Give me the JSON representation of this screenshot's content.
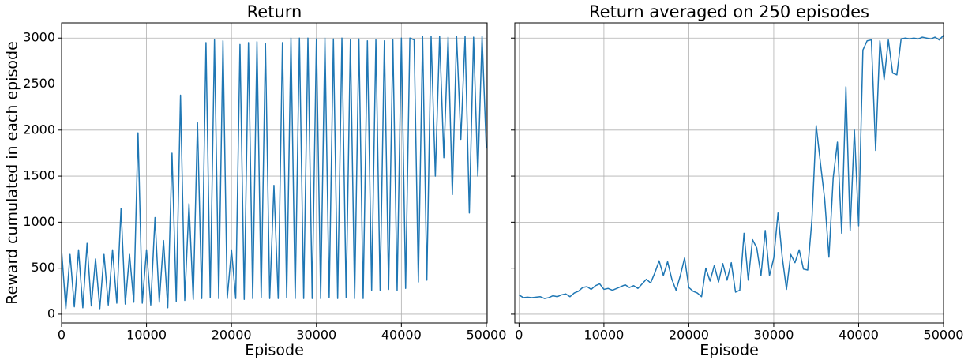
{
  "chart_data": [
    {
      "type": "line",
      "title": "Return",
      "x_label": "Episode",
      "y_label": "Reward cumulated in each episode",
      "x": [
        0,
        500,
        1000,
        1500,
        2000,
        2500,
        3000,
        3500,
        4000,
        4500,
        5000,
        5500,
        6000,
        6500,
        7000,
        7500,
        8000,
        8500,
        9000,
        9500,
        10000,
        10500,
        11000,
        11500,
        12000,
        12500,
        13000,
        13500,
        14000,
        14500,
        15000,
        15500,
        16000,
        16500,
        17000,
        17500,
        18000,
        18500,
        19000,
        19500,
        20000,
        20500,
        21000,
        21500,
        22000,
        22500,
        23000,
        23500,
        24000,
        24500,
        25000,
        25500,
        26000,
        26500,
        27000,
        27500,
        28000,
        28500,
        29000,
        29500,
        30000,
        30500,
        31000,
        31500,
        32000,
        32500,
        33000,
        33500,
        34000,
        34500,
        35000,
        35500,
        36000,
        36500,
        37000,
        37500,
        38000,
        38500,
        39000,
        39500,
        40000,
        40500,
        41000,
        41500,
        42000,
        42500,
        43000,
        43500,
        44000,
        44500,
        45000,
        45500,
        46000,
        46500,
        47000,
        47500,
        48000,
        48500,
        49000,
        49500,
        50000
      ],
      "series": [
        {
          "color": "#1f77b4",
          "values": [
            700,
            60,
            650,
            80,
            700,
            70,
            770,
            90,
            600,
            60,
            650,
            100,
            700,
            120,
            1150,
            110,
            650,
            130,
            1970,
            120,
            700,
            100,
            1050,
            130,
            800,
            70,
            1750,
            140,
            2380,
            150,
            1200,
            160,
            2080,
            170,
            2950,
            180,
            2980,
            170,
            2970,
            170,
            700,
            170,
            2930,
            160,
            2950,
            170,
            2960,
            180,
            2940,
            170,
            1400,
            170,
            2950,
            180,
            3000,
            170,
            3000,
            170,
            3000,
            170,
            2990,
            170,
            3000,
            180,
            2990,
            170,
            3000,
            180,
            2980,
            170,
            2990,
            170,
            2970,
            260,
            2980,
            260,
            2970,
            270,
            2980,
            260,
            3000,
            280,
            3000,
            2980,
            350,
            3020,
            370,
            3020,
            1500,
            3020,
            1700,
            3010,
            1300,
            3020,
            1900,
            3020,
            1100,
            3010,
            1500,
            3020,
            1800
          ]
        }
      ],
      "xlim": [
        0,
        50100
      ],
      "ylim": [
        -95,
        3165
      ],
      "xticks": [
        0,
        10000,
        20000,
        30000,
        40000,
        50000
      ],
      "yticks": [
        0,
        500,
        1000,
        1500,
        2000,
        2500,
        3000
      ],
      "grid": true,
      "y_tick_labels": true
    },
    {
      "type": "line",
      "title": "Return averaged on 250 episodes",
      "x_label": "Episode",
      "x": [
        0,
        500,
        1000,
        1500,
        2000,
        2500,
        3000,
        3500,
        4000,
        4500,
        5000,
        5500,
        6000,
        6500,
        7000,
        7500,
        8000,
        8500,
        9000,
        9500,
        10000,
        10500,
        11000,
        11500,
        12000,
        12500,
        13000,
        13500,
        14000,
        14500,
        15000,
        15500,
        16000,
        16500,
        17000,
        17500,
        18000,
        18500,
        19000,
        19500,
        20000,
        20500,
        21000,
        21500,
        22000,
        22500,
        23000,
        23500,
        24000,
        24500,
        25000,
        25500,
        26000,
        26500,
        27000,
        27500,
        28000,
        28500,
        29000,
        29500,
        30000,
        30500,
        31000,
        31500,
        32000,
        32500,
        33000,
        33500,
        34000,
        34500,
        35000,
        35500,
        36000,
        36500,
        37000,
        37500,
        38000,
        38500,
        39000,
        39500,
        40000,
        40500,
        41000,
        41500,
        42000,
        42500,
        43000,
        43500,
        44000,
        44500,
        45000,
        45500,
        46000,
        46500,
        47000,
        47500,
        48000,
        48500,
        49000,
        49500,
        50000
      ],
      "series": [
        {
          "color": "#1f77b4",
          "values": [
            210,
            180,
            185,
            180,
            185,
            190,
            170,
            180,
            200,
            190,
            210,
            220,
            190,
            230,
            250,
            290,
            300,
            270,
            310,
            330,
            270,
            280,
            260,
            280,
            300,
            320,
            290,
            310,
            280,
            330,
            380,
            340,
            450,
            580,
            420,
            570,
            380,
            260,
            420,
            610,
            290,
            250,
            230,
            190,
            500,
            360,
            530,
            350,
            550,
            370,
            560,
            240,
            260,
            880,
            370,
            810,
            720,
            420,
            910,
            420,
            610,
            1100,
            620,
            270,
            650,
            560,
            700,
            490,
            480,
            1030,
            2050,
            1640,
            1250,
            620,
            1480,
            1870,
            880,
            2470,
            910,
            2000,
            960,
            2870,
            2970,
            2980,
            1780,
            2970,
            2550,
            2980,
            2620,
            2600,
            2990,
            3000,
            2990,
            3000,
            2990,
            3010,
            3000,
            2990,
            3010,
            2980,
            3030
          ]
        }
      ],
      "xlim": [
        -500,
        50000
      ],
      "ylim": [
        -95,
        3165
      ],
      "xticks": [
        0,
        10000,
        20000,
        30000,
        40000,
        50000
      ],
      "yticks": [
        0,
        500,
        1000,
        1500,
        2000,
        2500,
        3000
      ],
      "grid": true,
      "y_tick_labels": false
    }
  ]
}
